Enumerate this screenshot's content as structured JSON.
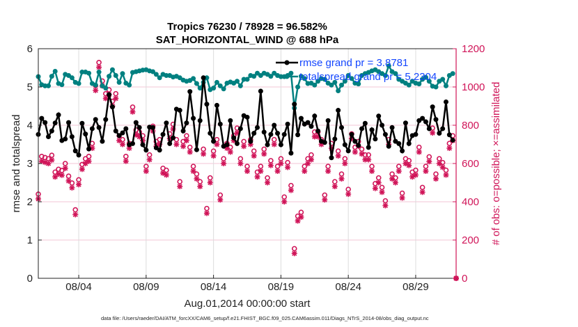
{
  "chart_data": {
    "type": "line",
    "title": "Tropics 76230 / 78928 = 96.582%",
    "subtitle": "SAT_HORIZONTAL_WIND @ 688 hPa",
    "xlabel": "Aug.01,2014 00:00:00 start",
    "ylabel": "rmse and totalspread",
    "ylabel_right": "# of obs: o=possible; ×=assimilated",
    "xlim_days": [
      1,
      32
    ],
    "x_start_day": 1,
    "x_step_days": 0.25,
    "ylim": [
      0,
      6
    ],
    "ylim_right": [
      0,
      1200
    ],
    "yticks": [
      "0",
      "1",
      "2",
      "3",
      "4",
      "5",
      "6"
    ],
    "yticks_right": [
      "0",
      "200",
      "400",
      "600",
      "800",
      "1000",
      "1200"
    ],
    "xticks": [
      {
        "day": 4,
        "label": "08/04"
      },
      {
        "day": 9,
        "label": "08/09"
      },
      {
        "day": 14,
        "label": "08/14"
      },
      {
        "day": 19,
        "label": "08/19"
      },
      {
        "day": 24,
        "label": "08/24"
      },
      {
        "day": 29,
        "label": "08/29"
      }
    ],
    "grid": true,
    "legend_placement": "top-right",
    "colors": {
      "rmse": "#000000",
      "spread": "#008080",
      "obs": "#d01458",
      "legend_text": "#1446ff"
    },
    "series": [
      {
        "name": "rmse",
        "legend": "rmse grand pr = 3.8781",
        "axis": "left",
        "values": [
          3.76,
          4.18,
          4.07,
          3.7,
          3.85,
          4.06,
          4.27,
          3.6,
          3.64,
          4.07,
          3.7,
          3.33,
          3.22,
          4.05,
          3.77,
          3.38,
          3.91,
          4.15,
          3.94,
          3.58,
          4.15,
          4.8,
          4.48,
          3.85,
          3.73,
          3.8,
          3.91,
          3.49,
          3.52,
          4.07,
          3.94,
          3.49,
          3.35,
          3.95,
          3.94,
          3.41,
          3.35,
          3.76,
          4.06,
          3.52,
          3.67,
          4.42,
          4.39,
          3.85,
          4.06,
          4.88,
          4.18,
          3.36,
          4.12,
          5.24,
          4.55,
          3.79,
          3.58,
          4.52,
          4.03,
          3.45,
          3.49,
          4.12,
          3.67,
          3.52,
          3.91,
          4.25,
          4.21,
          3.58,
          3.79,
          3.94,
          4.89,
          3.82,
          3.49,
          3.76,
          4.0,
          3.79,
          3.49,
          3.76,
          4.03,
          3.27,
          4.55,
          3.75,
          4.18,
          4.03,
          4.07,
          3.97,
          4.24,
          3.85,
          3.58,
          3.55,
          4.12,
          3.15,
          3.64,
          4.39,
          3.94,
          3.49,
          3.33,
          3.76,
          3.58,
          3.47,
          3.91,
          4.05,
          3.42,
          3.88,
          3.64,
          4.24,
          4.0,
          3.76,
          3.45,
          3.94,
          3.58,
          3.52,
          3.33,
          4.06,
          3.52,
          3.73,
          3.76,
          4.12,
          4.18,
          4.09,
          3.91,
          4.48,
          4.15,
          3.79,
          3.91,
          4.61,
          3.75,
          3.61
        ]
      },
      {
        "name": "totalspread",
        "legend": "totalspread grand pr = 5.2304",
        "axis": "left",
        "values": [
          5.27,
          5.06,
          5.03,
          5.03,
          5.28,
          5.41,
          5.09,
          5.06,
          5.33,
          5.3,
          5.24,
          5.12,
          5.09,
          5.39,
          5.39,
          5.36,
          5.09,
          5.05,
          5.39,
          5.03,
          4.97,
          5.28,
          5.45,
          5.3,
          5.12,
          5.35,
          5.1,
          5.05,
          5.38,
          5.4,
          5.42,
          5.44,
          5.45,
          5.42,
          5.4,
          5.33,
          5.24,
          5.33,
          5.3,
          5.3,
          5.26,
          5.28,
          5.24,
          5.18,
          5.15,
          5.17,
          5.22,
          5.09,
          4.97,
          5.12,
          5.24,
          4.93,
          4.97,
          5.12,
          5.03,
          4.95,
          5.1,
          5.13,
          5.1,
          5.15,
          5.03,
          5.2,
          5.2,
          5.3,
          5.28,
          5.36,
          5.3,
          5.36,
          5.33,
          5.28,
          5.36,
          5.3,
          5.27,
          5.27,
          5.3,
          5.36,
          4.45,
          5.0,
          5.28,
          5.22,
          5.09,
          5.1,
          5.05,
          5.15,
          5.22,
          5.2,
          5.1,
          5.05,
          5.12,
          4.9,
          5.05,
          5.15,
          5.3,
          5.22,
          5.1,
          5.08,
          5.3,
          5.35,
          5.38,
          5.42,
          5.45,
          5.4,
          5.35,
          5.3,
          5.55,
          5.4,
          5.35,
          5.2,
          5.15,
          5.1,
          5.05,
          5.15,
          5.1,
          5.08,
          5.2,
          5.25,
          5.15,
          5.02,
          5.0,
          5.15,
          5.2,
          5.03,
          5.3,
          5.35
        ]
      },
      {
        "name": "possible",
        "axis": "right",
        "values": [
          440,
          637,
          631,
          625,
          643,
          555,
          570,
          564,
          600,
          534,
          498,
          358,
          515,
          595,
          625,
          637,
          705,
          1007,
          1128,
          1031,
          965,
          985,
          925,
          965,
          745,
          725,
          637,
          705,
          895,
          775,
          765,
          745,
          585,
          645,
          795,
          715,
          725,
          575,
          565,
          755,
          805,
          725,
          505,
          715,
          745,
          685,
          585,
          545,
          505,
          675,
          365,
          525,
          665,
          725,
          435,
          625,
          705,
          685,
          745,
          785,
          625,
          715,
          585,
          725,
          665,
          555,
          585,
          675,
          525,
          615,
          725,
          585,
          625,
          425,
          605,
          485,
          155,
          325,
          345,
          585,
          625,
          645,
          765,
          765,
          725,
          435,
          585,
          705,
          505,
          665,
          545,
          625,
          465,
          755,
          685,
          715,
          675,
          645,
          645,
          585,
          495,
          525,
          475,
          405,
          725,
          545,
          525,
          585,
          445,
          625,
          615,
          555,
          565,
          685,
          475,
          585,
          635,
          785,
          545,
          625,
          605,
          565,
          705,
          745,
          0
        ]
      },
      {
        "name": "assimilated",
        "axis": "right",
        "values": [
          415,
          612,
          606,
          600,
          618,
          530,
          545,
          539,
          575,
          509,
          473,
          333,
          490,
          570,
          600,
          612,
          680,
          982,
          1103,
          1006,
          940,
          960,
          900,
          940,
          720,
          700,
          612,
          680,
          870,
          750,
          740,
          720,
          560,
          620,
          770,
          690,
          700,
          550,
          540,
          730,
          780,
          700,
          480,
          690,
          720,
          660,
          560,
          520,
          480,
          650,
          340,
          500,
          640,
          700,
          410,
          600,
          680,
          660,
          720,
          760,
          600,
          690,
          560,
          700,
          640,
          530,
          560,
          650,
          500,
          590,
          700,
          560,
          600,
          400,
          580,
          460,
          130,
          300,
          320,
          560,
          600,
          620,
          740,
          740,
          700,
          410,
          560,
          680,
          480,
          640,
          520,
          600,
          440,
          730,
          660,
          690,
          650,
          620,
          620,
          560,
          470,
          500,
          450,
          380,
          700,
          520,
          500,
          560,
          420,
          600,
          590,
          530,
          540,
          660,
          450,
          560,
          610,
          760,
          520,
          600,
          580,
          540,
          680,
          720,
          0
        ]
      }
    ]
  },
  "footer": {
    "file": "data file: /Users/raeder/DAI/ATM_forcXX/CAM6_setup/f.e21.FHIST_BGC.f09_025.CAM6assim.011/Diags_NTrS_2014-08/obs_diag_output.nc"
  }
}
